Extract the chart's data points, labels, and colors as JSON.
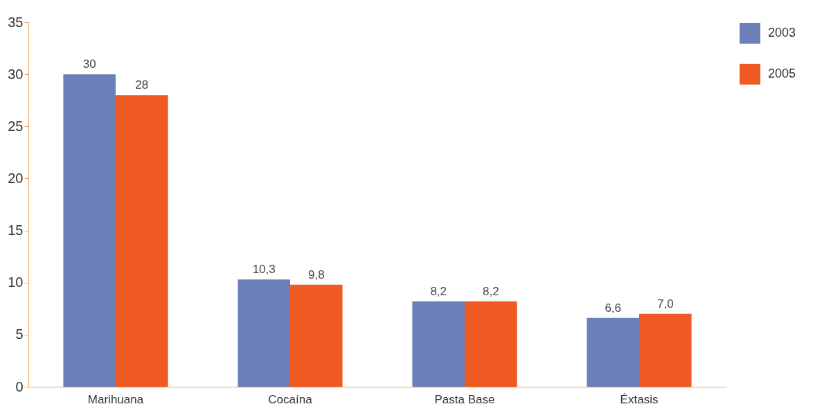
{
  "chart_data": {
    "type": "bar",
    "categories": [
      "Marihuana",
      "Cocaína",
      "Pasta Base",
      "Éxtasis"
    ],
    "series": [
      {
        "name": "2003",
        "color": "#6b7fb8",
        "values": [
          30,
          10.3,
          8.2,
          6.6
        ],
        "value_labels": [
          "30",
          "10,3",
          "8,2",
          "6,6"
        ]
      },
      {
        "name": "2005",
        "color": "#ee5a22",
        "values": [
          28,
          9.8,
          8.2,
          7.0
        ],
        "value_labels": [
          "28",
          "9,8",
          "8,2",
          "7,0"
        ]
      }
    ],
    "ylim": [
      0,
      35
    ],
    "yticks": [
      0,
      5,
      10,
      15,
      20,
      25,
      30,
      35
    ],
    "grid": false,
    "legend": "right"
  }
}
